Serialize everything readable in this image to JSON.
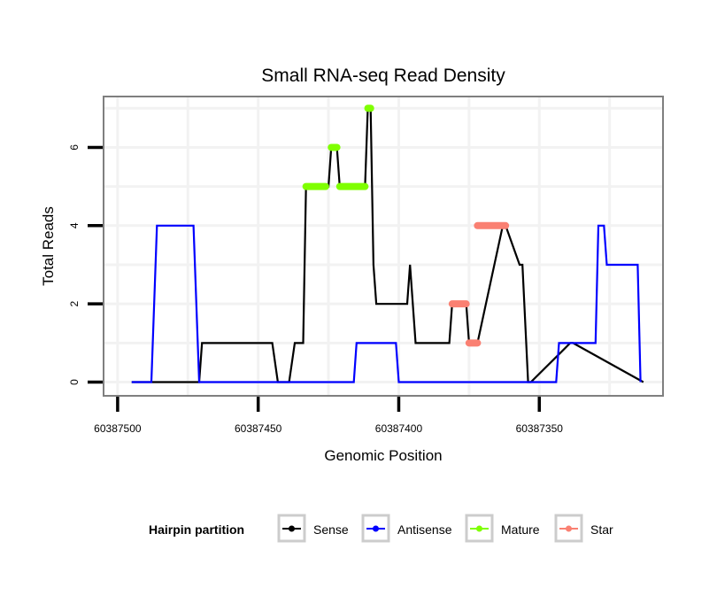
{
  "chart_data": {
    "type": "line",
    "title": "Small RNA-seq Read Density",
    "xlabel": "Genomic Position",
    "ylabel": "Total Reads",
    "x_reversed": true,
    "xlim": [
      60387505,
      60387306
    ],
    "ylim": [
      -0.35,
      7.3
    ],
    "xticks": [
      60387500,
      60387450,
      60387400,
      60387350
    ],
    "xtick_labels": [
      "60387500",
      "60387450",
      "60387400",
      "60387350"
    ],
    "yticks": [
      0,
      2,
      4,
      6
    ],
    "ytick_labels": [
      "0",
      "2",
      "4",
      "6"
    ],
    "grid": true,
    "legend": {
      "title": "Hairpin partition",
      "position": "bottom",
      "entries": [
        {
          "name": "Sense",
          "color": "#000000"
        },
        {
          "name": "Antisense",
          "color": "#0000ff"
        },
        {
          "name": "Mature",
          "color": "#7fff00"
        },
        {
          "name": "Star",
          "color": "#fa8072"
        }
      ]
    },
    "series": [
      {
        "name": "Sense",
        "color": "#000000",
        "style": "line",
        "x": [
          60387495,
          60387471,
          60387470,
          60387445,
          60387443,
          60387439,
          60387437,
          60387434,
          60387433,
          60387425,
          60387424,
          60387422,
          60387421,
          60387412,
          60387411,
          60387410,
          60387409,
          60387408,
          60387397,
          60387396,
          60387394,
          60387382,
          60387381,
          60387376,
          60387375,
          60387372,
          60387363,
          60387362,
          60387357,
          60387356,
          60387354,
          60387353,
          60387339,
          60387338,
          60387313
        ],
        "y": [
          0,
          0,
          1,
          1,
          0,
          0,
          1,
          1,
          5,
          5,
          6,
          6,
          5,
          5,
          7,
          7,
          3,
          2,
          2,
          3,
          1,
          1,
          2,
          2,
          1,
          1,
          4,
          4,
          3,
          3,
          0,
          0,
          1,
          1,
          0
        ]
      },
      {
        "name": "Antisense",
        "color": "#0000ff",
        "style": "line",
        "x": [
          60387495,
          60387488,
          60387486,
          60387473,
          60387471,
          60387416,
          60387415,
          60387401,
          60387400,
          60387344,
          60387343,
          60387330,
          60387329,
          60387327,
          60387326,
          60387315,
          60387314
        ],
        "y": [
          0,
          0,
          4,
          4,
          0,
          0,
          1,
          1,
          0,
          0,
          1,
          1,
          4,
          4,
          3,
          3,
          0
        ]
      },
      {
        "name": "Mature",
        "color": "#7fff00",
        "style": "points",
        "segments": [
          {
            "x": [
              60387433,
              60387426
            ],
            "y": 5
          },
          {
            "x": [
              60387424,
              60387422
            ],
            "y": 6
          },
          {
            "x": [
              60387421,
              60387412
            ],
            "y": 5
          },
          {
            "x": [
              60387411,
              60387410
            ],
            "y": 7
          }
        ]
      },
      {
        "name": "Star",
        "color": "#fa8072",
        "style": "points",
        "segments": [
          {
            "x": [
              60387381,
              60387376
            ],
            "y": 2
          },
          {
            "x": [
              60387375,
              60387372
            ],
            "y": 1
          },
          {
            "x": [
              60387372,
              60387362
            ],
            "y": 4
          }
        ]
      }
    ]
  }
}
